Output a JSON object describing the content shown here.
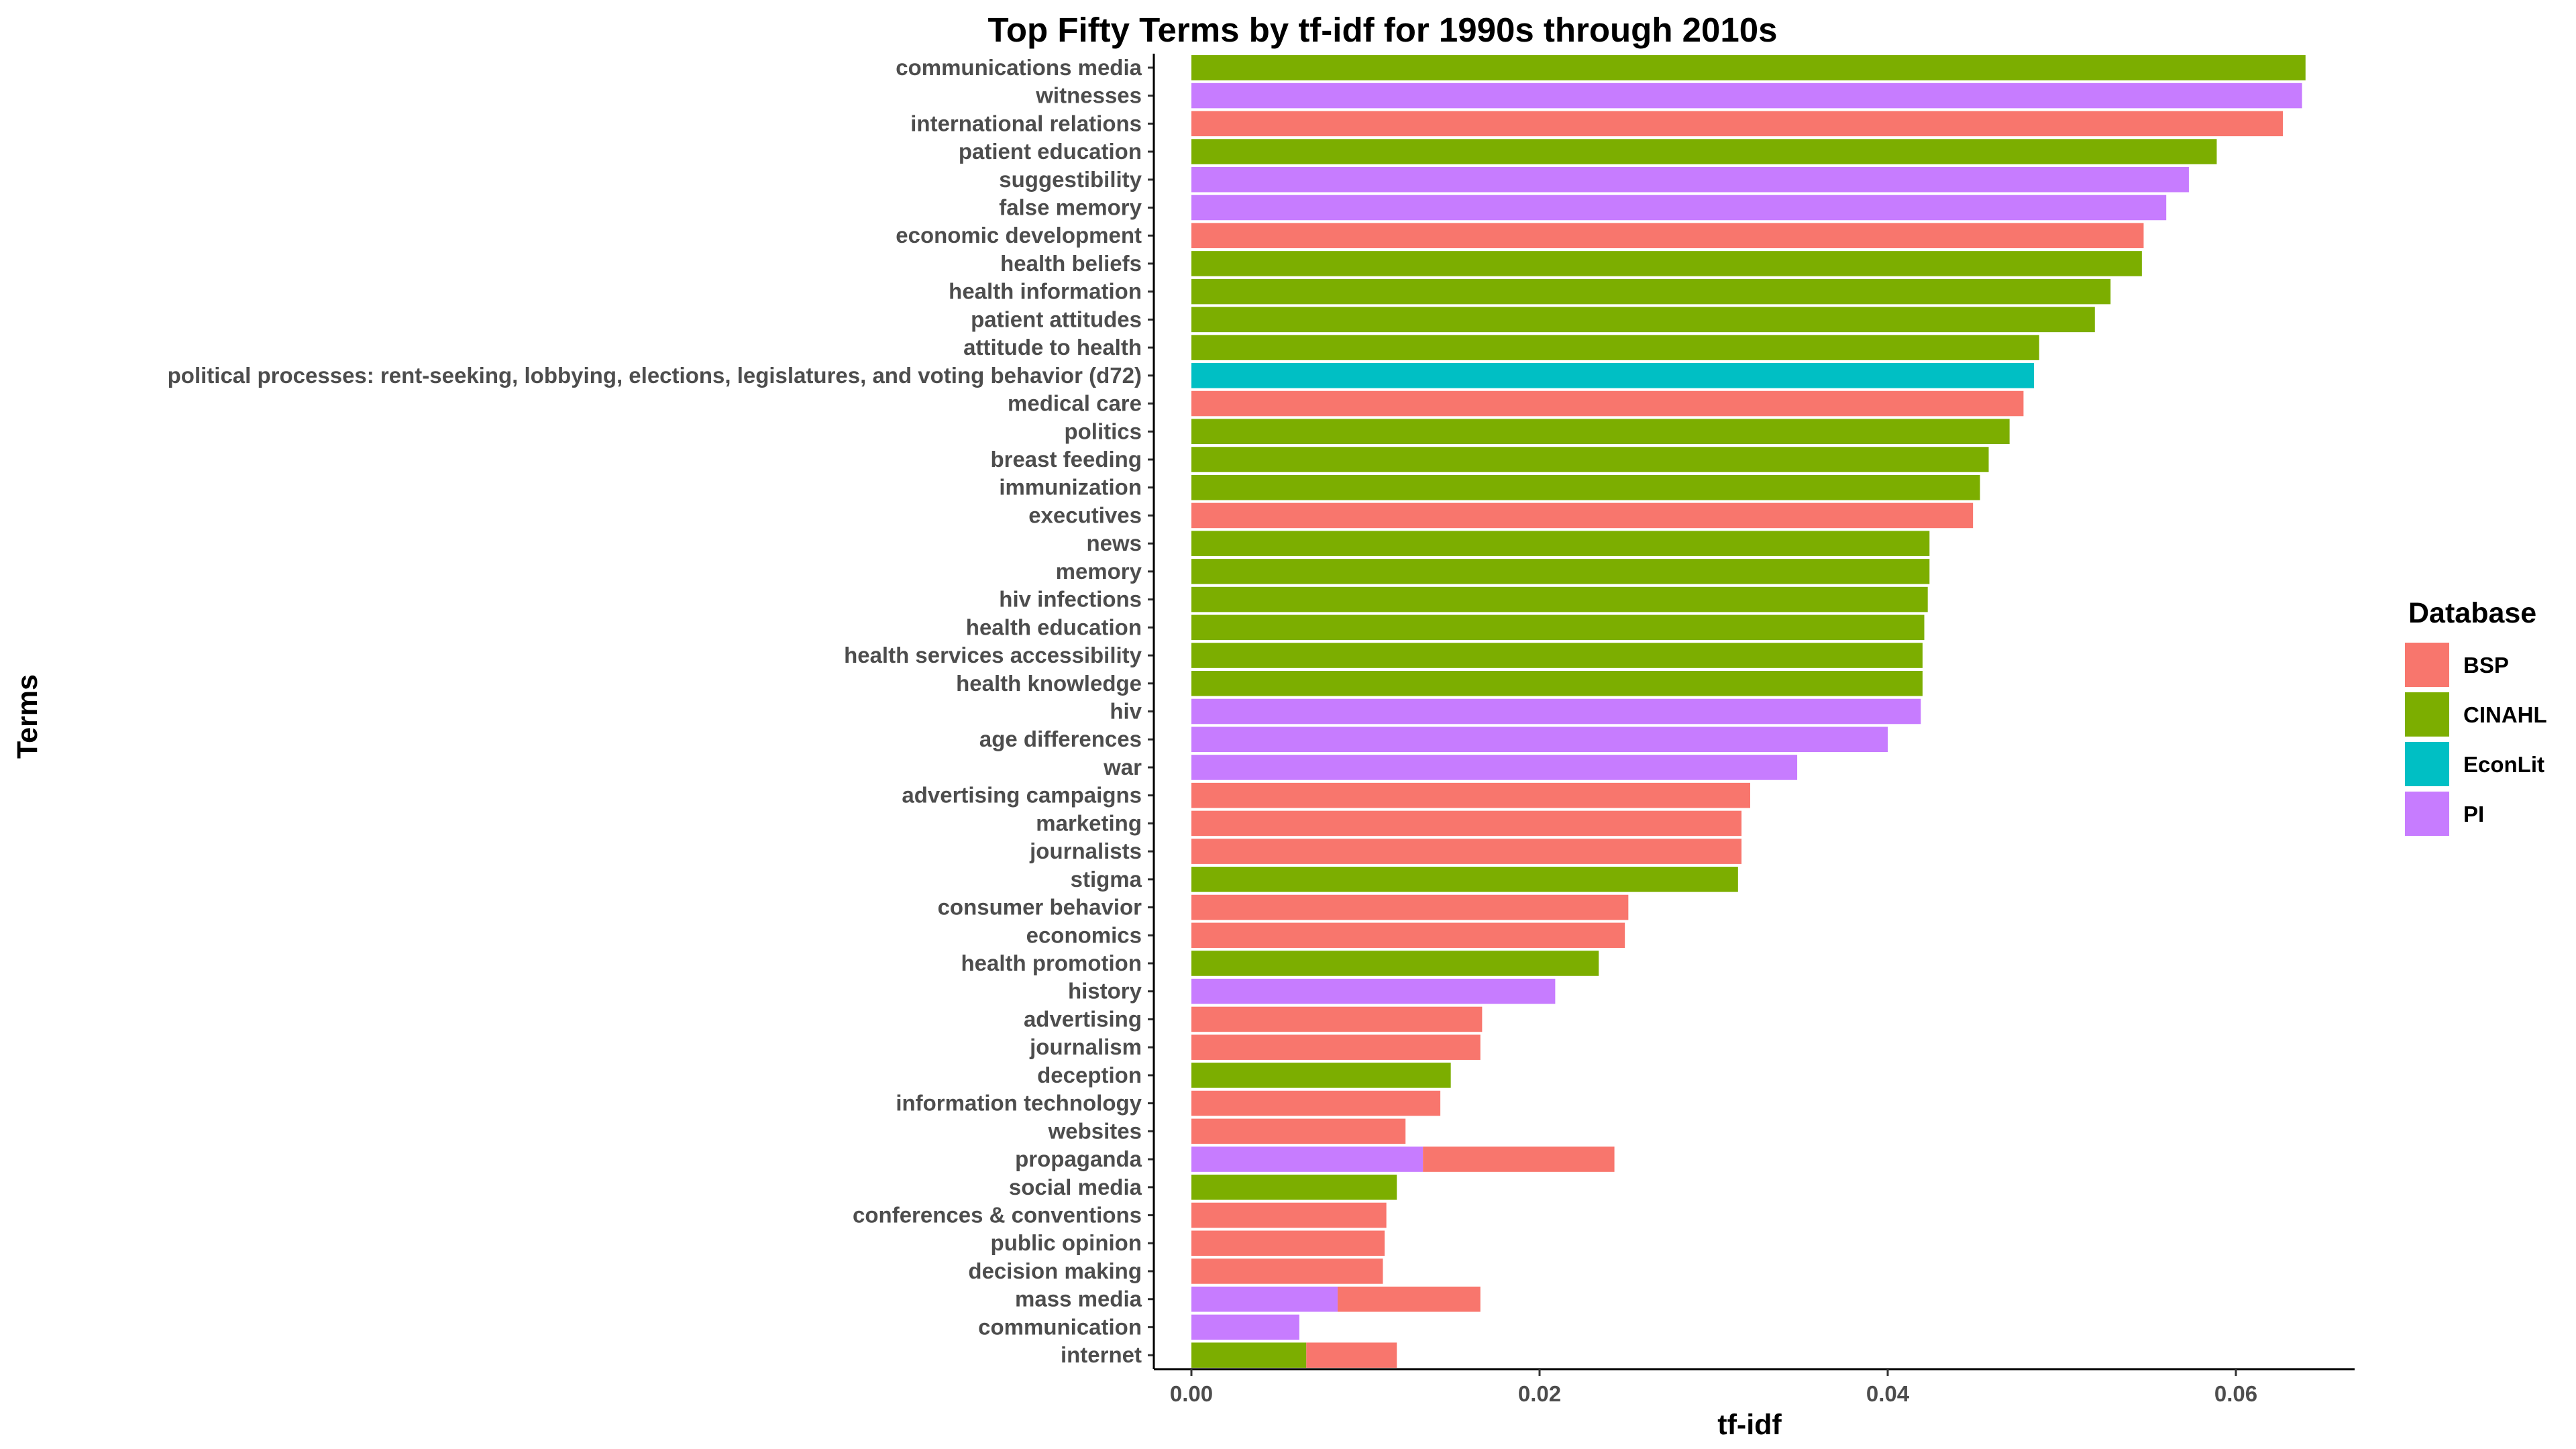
{
  "chart_data": {
    "type": "bar",
    "orientation": "horizontal",
    "title": "Top Fifty Terms by tf-idf for 1990s through 2010s",
    "xlabel": "tf-idf",
    "ylabel": "Terms",
    "xlim": [
      -0.0029,
      0.0672
    ],
    "xticks": [
      0.0,
      0.02,
      0.04,
      0.06
    ],
    "xtick_labels": [
      "0.00",
      "0.02",
      "0.04",
      "0.06"
    ],
    "grid": false,
    "legend": {
      "title": "Database",
      "placement": "right",
      "entries": [
        {
          "name": "BSP",
          "color": "#F8766D"
        },
        {
          "name": "CINAHL",
          "color": "#7CAE00"
        },
        {
          "name": "EconLit",
          "color": "#00BFC4"
        },
        {
          "name": "PI",
          "color": "#C77CFF"
        }
      ]
    },
    "bars": [
      {
        "term": "communications media",
        "segments": [
          {
            "db": "CINAHL",
            "value": 0.064
          }
        ]
      },
      {
        "term": "witnesses",
        "segments": [
          {
            "db": "PI",
            "value": 0.0638
          }
        ]
      },
      {
        "term": "international relations",
        "segments": [
          {
            "db": "BSP",
            "value": 0.0627
          }
        ]
      },
      {
        "term": "patient education",
        "segments": [
          {
            "db": "CINAHL",
            "value": 0.0589
          }
        ]
      },
      {
        "term": "suggestibility",
        "segments": [
          {
            "db": "PI",
            "value": 0.0573
          }
        ]
      },
      {
        "term": "false memory",
        "segments": [
          {
            "db": "PI",
            "value": 0.056
          }
        ]
      },
      {
        "term": "economic development",
        "segments": [
          {
            "db": "BSP",
            "value": 0.0547
          }
        ]
      },
      {
        "term": "health beliefs",
        "segments": [
          {
            "db": "CINAHL",
            "value": 0.0546
          }
        ]
      },
      {
        "term": "health information",
        "segments": [
          {
            "db": "CINAHL",
            "value": 0.0528
          }
        ]
      },
      {
        "term": "patient attitudes",
        "segments": [
          {
            "db": "CINAHL",
            "value": 0.0519
          }
        ]
      },
      {
        "term": "attitude to health",
        "segments": [
          {
            "db": "CINAHL",
            "value": 0.0487
          }
        ]
      },
      {
        "term": "political processes: rent-seeking, lobbying, elections, legislatures, and voting behavior (d72)",
        "segments": [
          {
            "db": "EconLit",
            "value": 0.0484
          }
        ]
      },
      {
        "term": "medical care",
        "segments": [
          {
            "db": "BSP",
            "value": 0.0478
          }
        ]
      },
      {
        "term": "politics",
        "segments": [
          {
            "db": "CINAHL",
            "value": 0.047
          }
        ]
      },
      {
        "term": "breast feeding",
        "segments": [
          {
            "db": "CINAHL",
            "value": 0.0458
          }
        ]
      },
      {
        "term": "immunization",
        "segments": [
          {
            "db": "CINAHL",
            "value": 0.0453
          }
        ]
      },
      {
        "term": "executives",
        "segments": [
          {
            "db": "BSP",
            "value": 0.0449
          }
        ]
      },
      {
        "term": "news",
        "segments": [
          {
            "db": "CINAHL",
            "value": 0.0424
          }
        ]
      },
      {
        "term": "memory",
        "segments": [
          {
            "db": "CINAHL",
            "value": 0.0424
          }
        ]
      },
      {
        "term": "hiv infections",
        "segments": [
          {
            "db": "CINAHL",
            "value": 0.0423
          }
        ]
      },
      {
        "term": "health education",
        "segments": [
          {
            "db": "CINAHL",
            "value": 0.0421
          }
        ]
      },
      {
        "term": "health services accessibility",
        "segments": [
          {
            "db": "CINAHL",
            "value": 0.042
          }
        ]
      },
      {
        "term": "health knowledge",
        "segments": [
          {
            "db": "CINAHL",
            "value": 0.042
          }
        ]
      },
      {
        "term": "hiv",
        "segments": [
          {
            "db": "PI",
            "value": 0.0419
          }
        ]
      },
      {
        "term": "age differences",
        "segments": [
          {
            "db": "PI",
            "value": 0.04
          }
        ]
      },
      {
        "term": "war",
        "segments": [
          {
            "db": "PI",
            "value": 0.0348
          }
        ]
      },
      {
        "term": "advertising campaigns",
        "segments": [
          {
            "db": "BSP",
            "value": 0.0321
          }
        ]
      },
      {
        "term": "marketing",
        "segments": [
          {
            "db": "BSP",
            "value": 0.0316
          }
        ]
      },
      {
        "term": "journalists",
        "segments": [
          {
            "db": "BSP",
            "value": 0.0316
          }
        ]
      },
      {
        "term": "stigma",
        "segments": [
          {
            "db": "CINAHL",
            "value": 0.0314
          }
        ]
      },
      {
        "term": "consumer behavior",
        "segments": [
          {
            "db": "BSP",
            "value": 0.0251
          }
        ]
      },
      {
        "term": "economics",
        "segments": [
          {
            "db": "BSP",
            "value": 0.0249
          }
        ]
      },
      {
        "term": "health promotion",
        "segments": [
          {
            "db": "CINAHL",
            "value": 0.0234
          }
        ]
      },
      {
        "term": "history",
        "segments": [
          {
            "db": "PI",
            "value": 0.0209
          }
        ]
      },
      {
        "term": "advertising",
        "segments": [
          {
            "db": "BSP",
            "value": 0.0167
          }
        ]
      },
      {
        "term": "journalism",
        "segments": [
          {
            "db": "BSP",
            "value": 0.0166
          }
        ]
      },
      {
        "term": "deception",
        "segments": [
          {
            "db": "CINAHL",
            "value": 0.0149
          }
        ]
      },
      {
        "term": "information technology",
        "segments": [
          {
            "db": "BSP",
            "value": 0.0143
          }
        ]
      },
      {
        "term": "websites",
        "segments": [
          {
            "db": "BSP",
            "value": 0.0123
          }
        ]
      },
      {
        "term": "propaganda",
        "segments": [
          {
            "db": "PI",
            "value": 0.0133
          },
          {
            "db": "BSP",
            "value": 0.011
          }
        ]
      },
      {
        "term": "social media",
        "segments": [
          {
            "db": "CINAHL",
            "value": 0.0118
          }
        ]
      },
      {
        "term": "conferences & conventions",
        "segments": [
          {
            "db": "BSP",
            "value": 0.0112
          }
        ]
      },
      {
        "term": "public opinion",
        "segments": [
          {
            "db": "BSP",
            "value": 0.0111
          }
        ]
      },
      {
        "term": "decision making",
        "segments": [
          {
            "db": "BSP",
            "value": 0.011
          }
        ]
      },
      {
        "term": "mass media",
        "segments": [
          {
            "db": "PI",
            "value": 0.0084
          },
          {
            "db": "BSP",
            "value": 0.0082
          }
        ]
      },
      {
        "term": "communication",
        "segments": [
          {
            "db": "PI",
            "value": 0.0062
          }
        ]
      },
      {
        "term": "internet",
        "segments": [
          {
            "db": "CINAHL",
            "value": 0.0066
          },
          {
            "db": "BSP",
            "value": 0.0052
          }
        ]
      }
    ]
  }
}
